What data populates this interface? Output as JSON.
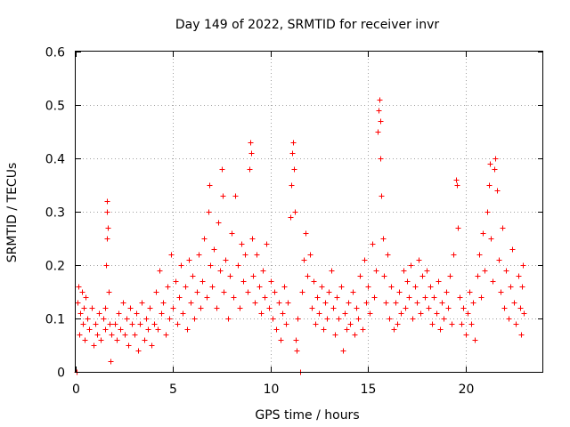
{
  "chart_data": {
    "type": "scatter",
    "title": "Day 149 of 2022, SRMTID for receiver invr",
    "xlabel": "GPS time / hours",
    "ylabel": "SRMTID / TECUs",
    "xlim": [
      0,
      24
    ],
    "ylim": [
      0,
      0.6
    ],
    "xticks": [
      0,
      5,
      10,
      15,
      20
    ],
    "xtick_labels": [
      "0",
      "5",
      "10",
      "15",
      "20"
    ],
    "yticks": [
      0,
      0.1,
      0.2,
      0.3,
      0.4,
      0.5,
      0.6
    ],
    "ytick_labels": [
      "0",
      "0.1",
      "0.2",
      "0.3",
      "0.4",
      "0.5",
      "0.6"
    ],
    "grid": true,
    "marker": "+",
    "color": "#ff0000",
    "series": [
      {
        "name": "SRMTID",
        "points": [
          [
            0.05,
            0.0
          ],
          [
            0.1,
            0.13
          ],
          [
            0.15,
            0.16
          ],
          [
            0.2,
            0.07
          ],
          [
            0.25,
            0.11
          ],
          [
            0.3,
            0.15
          ],
          [
            0.35,
            0.09
          ],
          [
            0.4,
            0.12
          ],
          [
            0.45,
            0.06
          ],
          [
            0.5,
            0.14
          ],
          [
            0.6,
            0.1
          ],
          [
            0.7,
            0.08
          ],
          [
            0.8,
            0.12
          ],
          [
            0.9,
            0.05
          ],
          [
            1.0,
            0.09
          ],
          [
            1.1,
            0.07
          ],
          [
            1.2,
            0.11
          ],
          [
            1.3,
            0.06
          ],
          [
            1.4,
            0.1
          ],
          [
            1.5,
            0.08
          ],
          [
            1.5,
            0.12
          ],
          [
            1.55,
            0.2
          ],
          [
            1.6,
            0.25
          ],
          [
            1.6,
            0.3
          ],
          [
            1.62,
            0.32
          ],
          [
            1.65,
            0.27
          ],
          [
            1.7,
            0.15
          ],
          [
            1.75,
            0.09
          ],
          [
            1.8,
            0.02
          ],
          [
            1.85,
            0.07
          ],
          [
            2.0,
            0.09
          ],
          [
            2.1,
            0.06
          ],
          [
            2.2,
            0.11
          ],
          [
            2.3,
            0.08
          ],
          [
            2.4,
            0.13
          ],
          [
            2.5,
            0.07
          ],
          [
            2.6,
            0.1
          ],
          [
            2.7,
            0.05
          ],
          [
            2.8,
            0.12
          ],
          [
            2.9,
            0.09
          ],
          [
            3.0,
            0.07
          ],
          [
            3.1,
            0.11
          ],
          [
            3.2,
            0.04
          ],
          [
            3.3,
            0.09
          ],
          [
            3.4,
            0.13
          ],
          [
            3.5,
            0.06
          ],
          [
            3.6,
            0.1
          ],
          [
            3.7,
            0.08
          ],
          [
            3.8,
            0.12
          ],
          [
            3.9,
            0.05
          ],
          [
            4.0,
            0.09
          ],
          [
            4.1,
            0.15
          ],
          [
            4.2,
            0.08
          ],
          [
            4.3,
            0.19
          ],
          [
            4.4,
            0.11
          ],
          [
            4.5,
            0.13
          ],
          [
            4.6,
            0.07
          ],
          [
            4.7,
            0.16
          ],
          [
            4.8,
            0.1
          ],
          [
            4.9,
            0.22
          ],
          [
            5.0,
            0.12
          ],
          [
            5.1,
            0.17
          ],
          [
            5.2,
            0.09
          ],
          [
            5.3,
            0.14
          ],
          [
            5.4,
            0.2
          ],
          [
            5.5,
            0.11
          ],
          [
            5.6,
            0.16
          ],
          [
            5.7,
            0.08
          ],
          [
            5.8,
            0.21
          ],
          [
            5.9,
            0.13
          ],
          [
            6.0,
            0.18
          ],
          [
            6.1,
            0.1
          ],
          [
            6.2,
            0.15
          ],
          [
            6.3,
            0.22
          ],
          [
            6.4,
            0.12
          ],
          [
            6.5,
            0.17
          ],
          [
            6.6,
            0.25
          ],
          [
            6.7,
            0.14
          ],
          [
            6.8,
            0.3
          ],
          [
            6.85,
            0.35
          ],
          [
            6.9,
            0.2
          ],
          [
            7.0,
            0.16
          ],
          [
            7.1,
            0.23
          ],
          [
            7.2,
            0.12
          ],
          [
            7.3,
            0.28
          ],
          [
            7.4,
            0.19
          ],
          [
            7.5,
            0.38
          ],
          [
            7.55,
            0.33
          ],
          [
            7.6,
            0.15
          ],
          [
            7.7,
            0.21
          ],
          [
            7.8,
            0.1
          ],
          [
            7.9,
            0.18
          ],
          [
            8.0,
            0.26
          ],
          [
            8.1,
            0.14
          ],
          [
            8.2,
            0.33
          ],
          [
            8.3,
            0.2
          ],
          [
            8.4,
            0.12
          ],
          [
            8.5,
            0.24
          ],
          [
            8.6,
            0.17
          ],
          [
            8.7,
            0.22
          ],
          [
            8.8,
            0.15
          ],
          [
            8.9,
            0.38
          ],
          [
            8.95,
            0.43
          ],
          [
            9.0,
            0.41
          ],
          [
            9.05,
            0.25
          ],
          [
            9.1,
            0.18
          ],
          [
            9.2,
            0.13
          ],
          [
            9.3,
            0.22
          ],
          [
            9.4,
            0.16
          ],
          [
            9.5,
            0.11
          ],
          [
            9.6,
            0.19
          ],
          [
            9.7,
            0.14
          ],
          [
            9.8,
            0.24
          ],
          [
            9.9,
            0.12
          ],
          [
            10.0,
            0.17
          ],
          [
            10.1,
            0.1
          ],
          [
            10.2,
            0.15
          ],
          [
            10.3,
            0.08
          ],
          [
            10.4,
            0.13
          ],
          [
            10.5,
            0.06
          ],
          [
            10.6,
            0.11
          ],
          [
            10.7,
            0.16
          ],
          [
            10.8,
            0.09
          ],
          [
            10.9,
            0.13
          ],
          [
            11.0,
            0.29
          ],
          [
            11.05,
            0.35
          ],
          [
            11.1,
            0.41
          ],
          [
            11.15,
            0.43
          ],
          [
            11.2,
            0.38
          ],
          [
            11.25,
            0.3
          ],
          [
            11.3,
            0.06
          ],
          [
            11.35,
            0.04
          ],
          [
            11.4,
            0.1
          ],
          [
            11.5,
            0.0
          ],
          [
            11.6,
            0.15
          ],
          [
            11.7,
            0.21
          ],
          [
            11.8,
            0.26
          ],
          [
            11.9,
            0.18
          ],
          [
            12.0,
            0.22
          ],
          [
            12.1,
            0.12
          ],
          [
            12.2,
            0.17
          ],
          [
            12.3,
            0.09
          ],
          [
            12.4,
            0.14
          ],
          [
            12.5,
            0.11
          ],
          [
            12.6,
            0.16
          ],
          [
            12.7,
            0.08
          ],
          [
            12.8,
            0.13
          ],
          [
            12.9,
            0.1
          ],
          [
            13.0,
            0.15
          ],
          [
            13.1,
            0.19
          ],
          [
            13.2,
            0.12
          ],
          [
            13.3,
            0.07
          ],
          [
            13.4,
            0.14
          ],
          [
            13.5,
            0.1
          ],
          [
            13.6,
            0.16
          ],
          [
            13.7,
            0.04
          ],
          [
            13.8,
            0.11
          ],
          [
            13.9,
            0.08
          ],
          [
            14.0,
            0.13
          ],
          [
            14.1,
            0.09
          ],
          [
            14.2,
            0.15
          ],
          [
            14.3,
            0.07
          ],
          [
            14.4,
            0.12
          ],
          [
            14.5,
            0.1
          ],
          [
            14.6,
            0.18
          ],
          [
            14.7,
            0.08
          ],
          [
            14.8,
            0.21
          ],
          [
            14.9,
            0.13
          ],
          [
            15.0,
            0.16
          ],
          [
            15.1,
            0.11
          ],
          [
            15.2,
            0.24
          ],
          [
            15.3,
            0.14
          ],
          [
            15.4,
            0.19
          ],
          [
            15.5,
            0.45
          ],
          [
            15.55,
            0.49
          ],
          [
            15.6,
            0.51
          ],
          [
            15.62,
            0.47
          ],
          [
            15.65,
            0.4
          ],
          [
            15.7,
            0.33
          ],
          [
            15.75,
            0.25
          ],
          [
            15.8,
            0.18
          ],
          [
            15.9,
            0.13
          ],
          [
            16.0,
            0.22
          ],
          [
            16.1,
            0.1
          ],
          [
            16.2,
            0.16
          ],
          [
            16.3,
            0.08
          ],
          [
            16.4,
            0.13
          ],
          [
            16.5,
            0.09
          ],
          [
            16.6,
            0.15
          ],
          [
            16.7,
            0.11
          ],
          [
            16.8,
            0.19
          ],
          [
            16.9,
            0.12
          ],
          [
            17.0,
            0.17
          ],
          [
            17.1,
            0.14
          ],
          [
            17.2,
            0.2
          ],
          [
            17.3,
            0.1
          ],
          [
            17.4,
            0.16
          ],
          [
            17.5,
            0.13
          ],
          [
            17.6,
            0.21
          ],
          [
            17.7,
            0.11
          ],
          [
            17.8,
            0.18
          ],
          [
            17.9,
            0.14
          ],
          [
            18.0,
            0.19
          ],
          [
            18.1,
            0.12
          ],
          [
            18.2,
            0.16
          ],
          [
            18.3,
            0.09
          ],
          [
            18.4,
            0.14
          ],
          [
            18.5,
            0.11
          ],
          [
            18.6,
            0.17
          ],
          [
            18.7,
            0.08
          ],
          [
            18.8,
            0.13
          ],
          [
            18.9,
            0.1
          ],
          [
            19.0,
            0.15
          ],
          [
            19.1,
            0.12
          ],
          [
            19.2,
            0.18
          ],
          [
            19.3,
            0.09
          ],
          [
            19.4,
            0.22
          ],
          [
            19.5,
            0.36
          ],
          [
            19.55,
            0.35
          ],
          [
            19.6,
            0.27
          ],
          [
            19.7,
            0.14
          ],
          [
            19.8,
            0.09
          ],
          [
            19.9,
            0.12
          ],
          [
            20.0,
            0.07
          ],
          [
            20.1,
            0.11
          ],
          [
            20.2,
            0.15
          ],
          [
            20.3,
            0.09
          ],
          [
            20.4,
            0.13
          ],
          [
            20.5,
            0.06
          ],
          [
            20.6,
            0.18
          ],
          [
            20.7,
            0.22
          ],
          [
            20.8,
            0.14
          ],
          [
            20.9,
            0.26
          ],
          [
            21.0,
            0.19
          ],
          [
            21.1,
            0.3
          ],
          [
            21.2,
            0.35
          ],
          [
            21.25,
            0.39
          ],
          [
            21.3,
            0.25
          ],
          [
            21.4,
            0.17
          ],
          [
            21.5,
            0.38
          ],
          [
            21.55,
            0.4
          ],
          [
            21.6,
            0.34
          ],
          [
            21.7,
            0.21
          ],
          [
            21.8,
            0.15
          ],
          [
            21.9,
            0.27
          ],
          [
            22.0,
            0.12
          ],
          [
            22.1,
            0.19
          ],
          [
            22.2,
            0.1
          ],
          [
            22.3,
            0.16
          ],
          [
            22.4,
            0.23
          ],
          [
            22.5,
            0.13
          ],
          [
            22.6,
            0.09
          ],
          [
            22.7,
            0.18
          ],
          [
            22.8,
            0.12
          ],
          [
            22.85,
            0.07
          ],
          [
            22.9,
            0.16
          ],
          [
            22.95,
            0.2
          ],
          [
            23.0,
            0.11
          ]
        ]
      }
    ]
  }
}
